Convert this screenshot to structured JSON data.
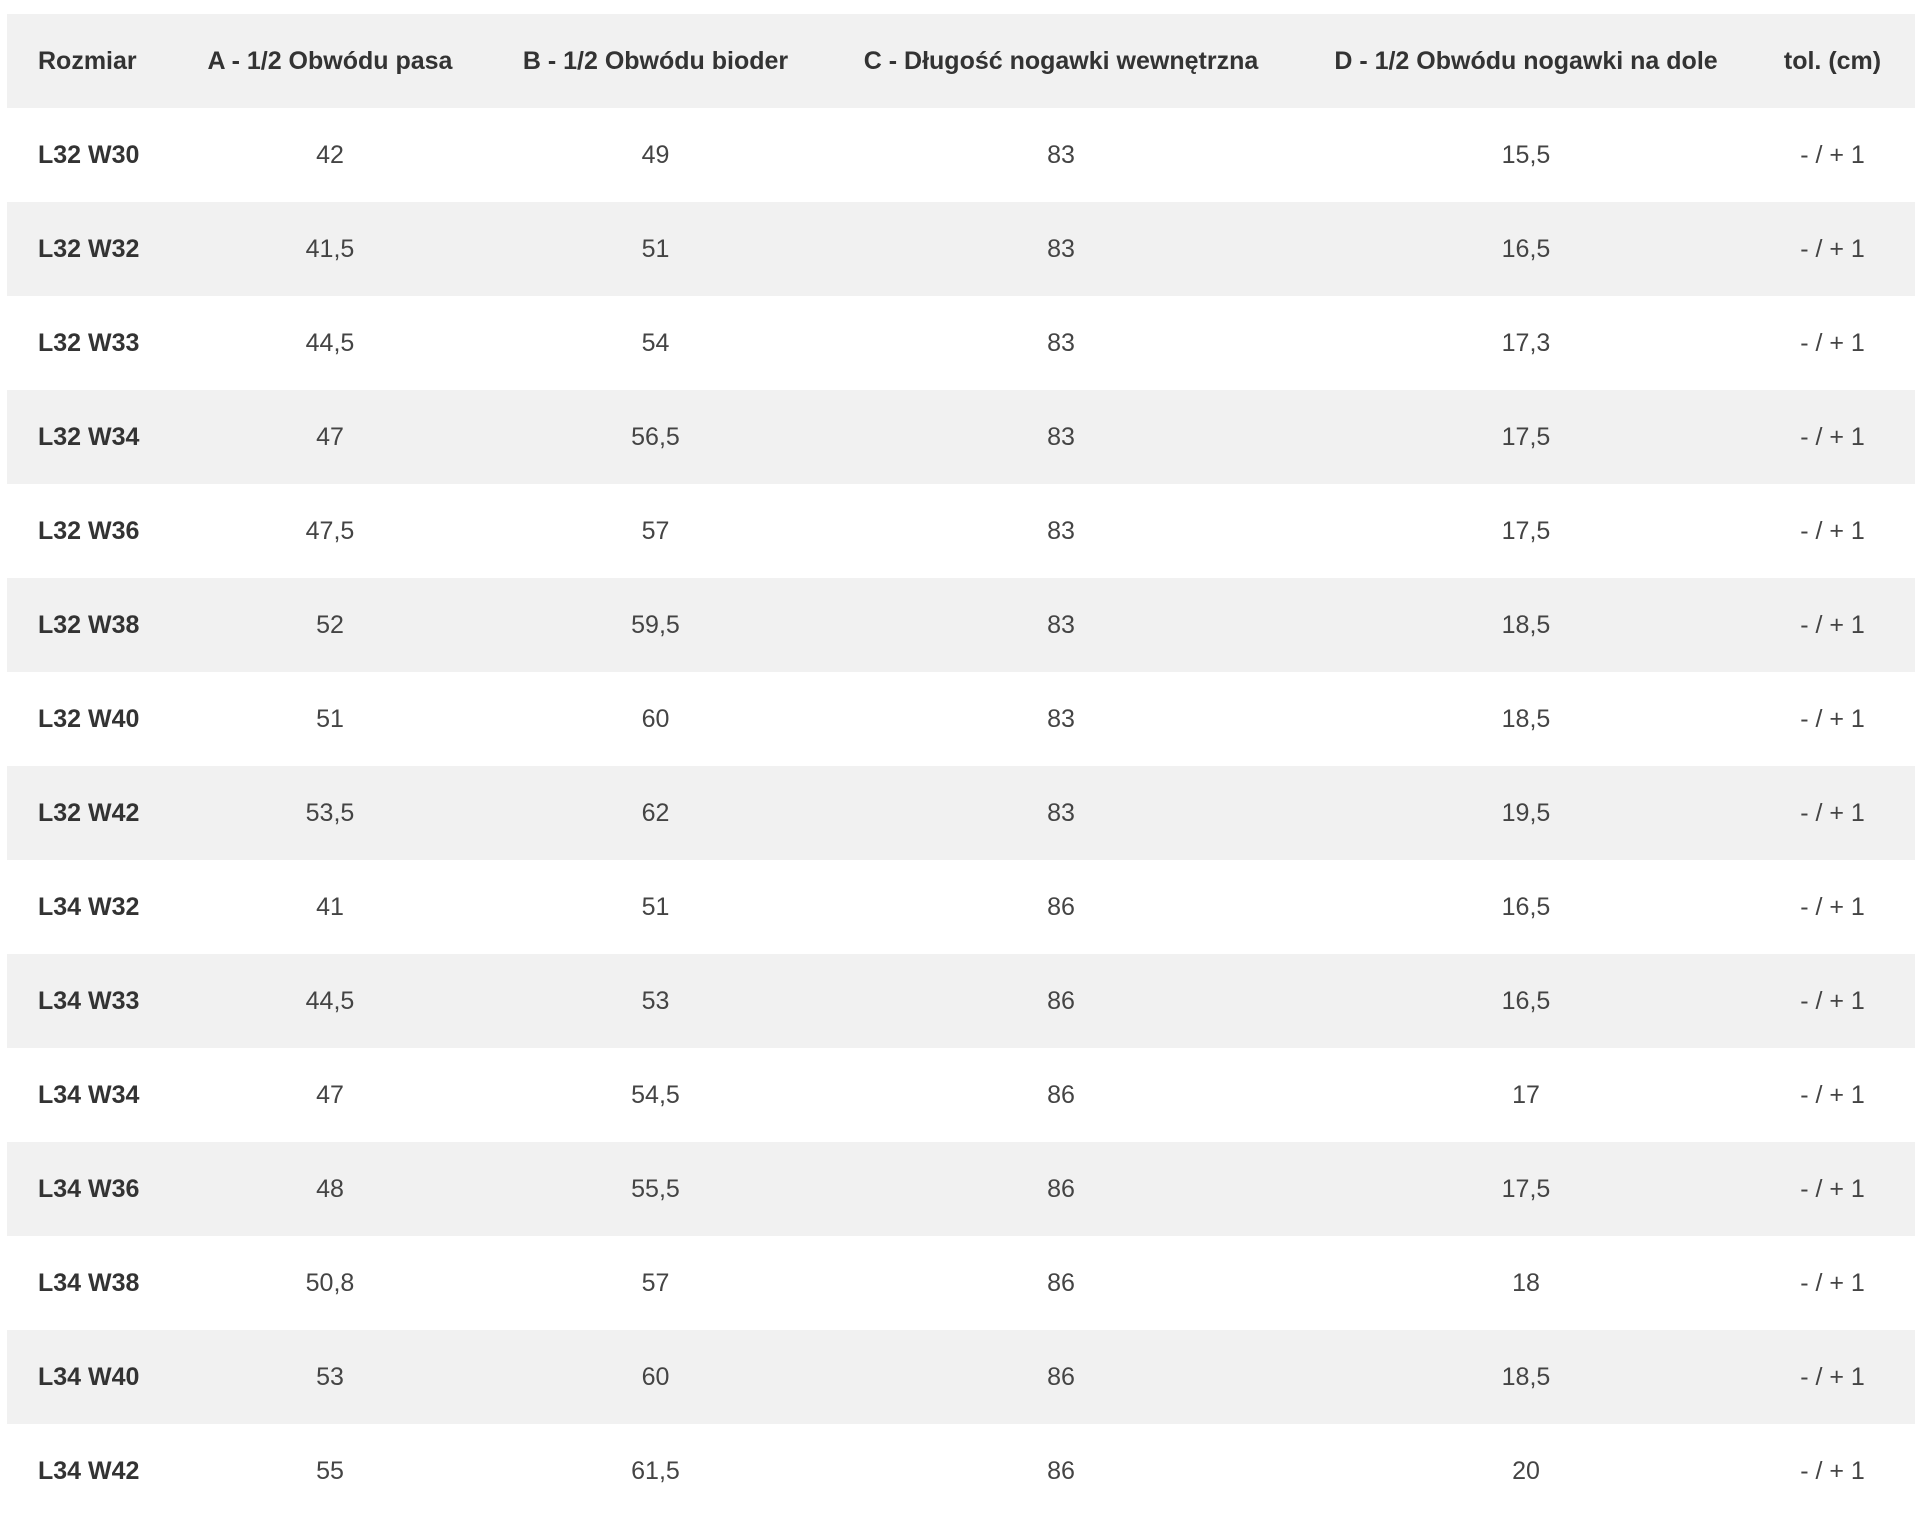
{
  "table": {
    "headers": {
      "size": "Rozmiar",
      "a": "A - 1/2 Obwódu pasa",
      "b": "B - 1/2 Obwódu bioder",
      "c": "C - Długość nogawki wewnętrzna",
      "d": "D - 1/2 Obwódu nogawki na dole",
      "tol": "tol. (cm)"
    },
    "rows": [
      {
        "size": "L32 W30",
        "a": "42",
        "b": "49",
        "c": "83",
        "d": "15,5",
        "tol": "- / + 1"
      },
      {
        "size": "L32 W32",
        "a": "41,5",
        "b": "51",
        "c": "83",
        "d": "16,5",
        "tol": "- / + 1"
      },
      {
        "size": "L32 W33",
        "a": "44,5",
        "b": "54",
        "c": "83",
        "d": "17,3",
        "tol": "- / + 1"
      },
      {
        "size": "L32 W34",
        "a": "47",
        "b": "56,5",
        "c": "83",
        "d": "17,5",
        "tol": "- / + 1"
      },
      {
        "size": "L32 W36",
        "a": "47,5",
        "b": "57",
        "c": "83",
        "d": "17,5",
        "tol": "- / + 1"
      },
      {
        "size": "L32 W38",
        "a": "52",
        "b": "59,5",
        "c": "83",
        "d": "18,5",
        "tol": "- / + 1"
      },
      {
        "size": "L32 W40",
        "a": "51",
        "b": "60",
        "c": "83",
        "d": "18,5",
        "tol": "- / + 1"
      },
      {
        "size": "L32 W42",
        "a": "53,5",
        "b": "62",
        "c": "83",
        "d": "19,5",
        "tol": "- / + 1"
      },
      {
        "size": "L34 W32",
        "a": "41",
        "b": "51",
        "c": "86",
        "d": "16,5",
        "tol": "- / + 1"
      },
      {
        "size": "L34 W33",
        "a": "44,5",
        "b": "53",
        "c": "86",
        "d": "16,5",
        "tol": "- / + 1"
      },
      {
        "size": "L34 W34",
        "a": "47",
        "b": "54,5",
        "c": "86",
        "d": "17",
        "tol": "- / + 1"
      },
      {
        "size": "L34 W36",
        "a": "48",
        "b": "55,5",
        "c": "86",
        "d": "17,5",
        "tol": "- / + 1"
      },
      {
        "size": "L34 W38",
        "a": "50,8",
        "b": "57",
        "c": "86",
        "d": "18",
        "tol": "- / + 1"
      },
      {
        "size": "L34 W40",
        "a": "53",
        "b": "60",
        "c": "86",
        "d": "18,5",
        "tol": "- / + 1"
      },
      {
        "size": "L34 W42",
        "a": "55",
        "b": "61,5",
        "c": "86",
        "d": "20",
        "tol": "- / + 1"
      }
    ]
  },
  "colors": {
    "row_shade": "#f1f1f1",
    "text": "#333333"
  }
}
